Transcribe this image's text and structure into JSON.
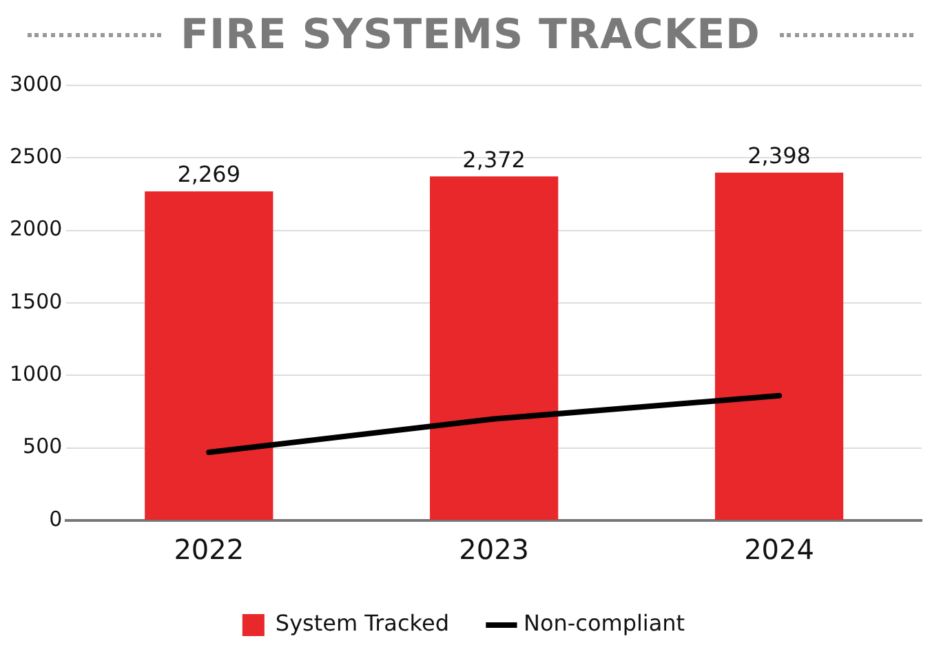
{
  "chart_data": {
    "type": "bar",
    "title": "FIRE SYSTEMS TRACKED",
    "categories": [
      "2022",
      "2023",
      "2024"
    ],
    "series": [
      {
        "name": "System Tracked",
        "color": "#e8282b",
        "values": [
          2269,
          2372,
          2398
        ],
        "value_labels": [
          "2,269",
          "2,372",
          "2,398"
        ]
      },
      {
        "name": "Non-compliant",
        "type": "line",
        "color": "#000000",
        "values": [
          470,
          700,
          860
        ],
        "marker": "none"
      }
    ],
    "ylim": [
      0,
      3000
    ],
    "yticks": [
      0,
      500,
      1000,
      1500,
      2000,
      2500,
      3000
    ],
    "grid": "y",
    "legend": "bottom"
  }
}
